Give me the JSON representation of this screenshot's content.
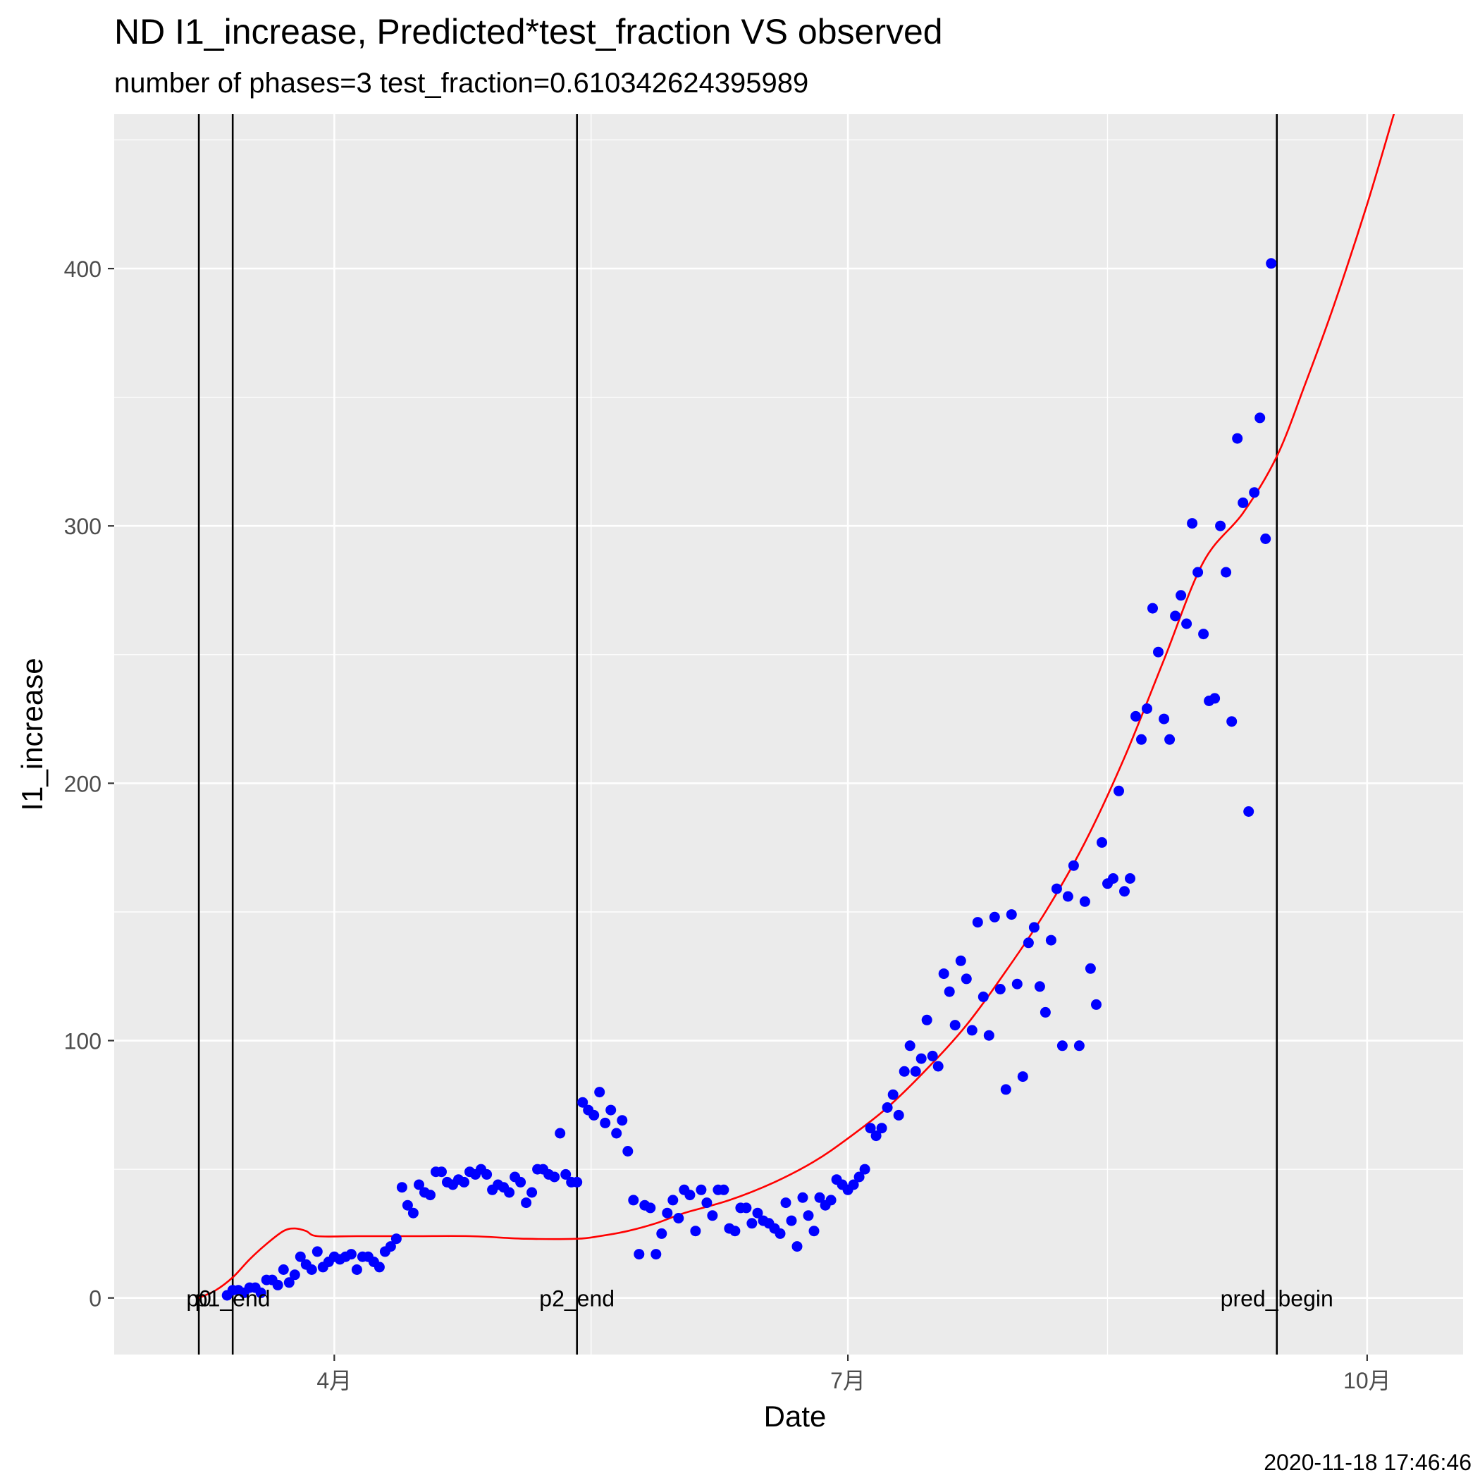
{
  "chart_data": {
    "type": "scatter",
    "title": "ND I1_increase, Predicted*test_fraction VS observed",
    "subtitle": "number of phases=3   test_fraction=0.610342624395989",
    "xlabel": "Date",
    "ylabel": "I1_increase",
    "timestamp": "2020-11-18 17:46:46",
    "xlim": [
      "2020-02-22",
      "2020-10-18"
    ],
    "ylim": [
      -22,
      460
    ],
    "x_ticks": [
      {
        "date": "2020-04-01",
        "label": "4月"
      },
      {
        "date": "2020-07-01",
        "label": "7月"
      },
      {
        "date": "2020-10-01",
        "label": "10月"
      }
    ],
    "y_ticks": [
      0,
      100,
      200,
      300,
      400
    ],
    "grid": true,
    "colors": {
      "panel": "#EBEBEB",
      "grid": "#FFFFFF",
      "observed": "#0000FF",
      "predicted": "#FF0000",
      "vline": "#000000"
    },
    "vlines": [
      {
        "date": "2020-03-08",
        "label": "p0"
      },
      {
        "date": "2020-03-14",
        "label": "p1_end"
      },
      {
        "date": "2020-05-14",
        "label": "p2_end"
      },
      {
        "date": "2020-09-15",
        "label": "pred_begin"
      }
    ],
    "observed": [
      [
        "2020-03-13",
        1
      ],
      [
        "2020-03-14",
        3
      ],
      [
        "2020-03-15",
        3
      ],
      [
        "2020-03-16",
        2
      ],
      [
        "2020-03-17",
        4
      ],
      [
        "2020-03-18",
        4
      ],
      [
        "2020-03-19",
        2
      ],
      [
        "2020-03-20",
        7
      ],
      [
        "2020-03-21",
        7
      ],
      [
        "2020-03-22",
        5
      ],
      [
        "2020-03-23",
        11
      ],
      [
        "2020-03-24",
        6
      ],
      [
        "2020-03-25",
        9
      ],
      [
        "2020-03-26",
        16
      ],
      [
        "2020-03-27",
        13
      ],
      [
        "2020-03-28",
        11
      ],
      [
        "2020-03-29",
        18
      ],
      [
        "2020-03-30",
        12
      ],
      [
        "2020-03-31",
        14
      ],
      [
        "2020-04-01",
        16
      ],
      [
        "2020-04-02",
        15
      ],
      [
        "2020-04-03",
        16
      ],
      [
        "2020-04-04",
        17
      ],
      [
        "2020-04-05",
        11
      ],
      [
        "2020-04-06",
        16
      ],
      [
        "2020-04-07",
        16
      ],
      [
        "2020-04-08",
        14
      ],
      [
        "2020-04-09",
        12
      ],
      [
        "2020-04-10",
        18
      ],
      [
        "2020-04-11",
        20
      ],
      [
        "2020-04-12",
        23
      ],
      [
        "2020-04-13",
        43
      ],
      [
        "2020-04-14",
        36
      ],
      [
        "2020-04-15",
        33
      ],
      [
        "2020-04-16",
        44
      ],
      [
        "2020-04-17",
        41
      ],
      [
        "2020-04-18",
        40
      ],
      [
        "2020-04-19",
        49
      ],
      [
        "2020-04-20",
        49
      ],
      [
        "2020-04-21",
        45
      ],
      [
        "2020-04-22",
        44
      ],
      [
        "2020-04-23",
        46
      ],
      [
        "2020-04-24",
        45
      ],
      [
        "2020-04-25",
        49
      ],
      [
        "2020-04-26",
        48
      ],
      [
        "2020-04-27",
        50
      ],
      [
        "2020-04-28",
        48
      ],
      [
        "2020-04-29",
        42
      ],
      [
        "2020-04-30",
        44
      ],
      [
        "2020-05-01",
        43
      ],
      [
        "2020-05-02",
        41
      ],
      [
        "2020-05-03",
        47
      ],
      [
        "2020-05-04",
        45
      ],
      [
        "2020-05-05",
        37
      ],
      [
        "2020-05-06",
        41
      ],
      [
        "2020-05-07",
        50
      ],
      [
        "2020-05-08",
        50
      ],
      [
        "2020-05-09",
        48
      ],
      [
        "2020-05-10",
        47
      ],
      [
        "2020-05-11",
        64
      ],
      [
        "2020-05-12",
        48
      ],
      [
        "2020-05-13",
        45
      ],
      [
        "2020-05-14",
        45
      ],
      [
        "2020-05-15",
        76
      ],
      [
        "2020-05-16",
        73
      ],
      [
        "2020-05-17",
        71
      ],
      [
        "2020-05-18",
        80
      ],
      [
        "2020-05-19",
        68
      ],
      [
        "2020-05-20",
        73
      ],
      [
        "2020-05-21",
        64
      ],
      [
        "2020-05-22",
        69
      ],
      [
        "2020-05-23",
        57
      ],
      [
        "2020-05-24",
        38
      ],
      [
        "2020-05-25",
        17
      ],
      [
        "2020-05-26",
        36
      ],
      [
        "2020-05-27",
        35
      ],
      [
        "2020-05-28",
        17
      ],
      [
        "2020-05-29",
        25
      ],
      [
        "2020-05-30",
        33
      ],
      [
        "2020-05-31",
        38
      ],
      [
        "2020-06-01",
        31
      ],
      [
        "2020-06-02",
        42
      ],
      [
        "2020-06-03",
        40
      ],
      [
        "2020-06-04",
        26
      ],
      [
        "2020-06-05",
        42
      ],
      [
        "2020-06-06",
        37
      ],
      [
        "2020-06-07",
        32
      ],
      [
        "2020-06-08",
        42
      ],
      [
        "2020-06-09",
        42
      ],
      [
        "2020-06-10",
        27
      ],
      [
        "2020-06-11",
        26
      ],
      [
        "2020-06-12",
        35
      ],
      [
        "2020-06-13",
        35
      ],
      [
        "2020-06-14",
        29
      ],
      [
        "2020-06-15",
        33
      ],
      [
        "2020-06-16",
        30
      ],
      [
        "2020-06-17",
        29
      ],
      [
        "2020-06-18",
        27
      ],
      [
        "2020-06-19",
        25
      ],
      [
        "2020-06-20",
        37
      ],
      [
        "2020-06-21",
        30
      ],
      [
        "2020-06-22",
        20
      ],
      [
        "2020-06-23",
        39
      ],
      [
        "2020-06-24",
        32
      ],
      [
        "2020-06-25",
        26
      ],
      [
        "2020-06-26",
        39
      ],
      [
        "2020-06-27",
        36
      ],
      [
        "2020-06-28",
        38
      ],
      [
        "2020-06-29",
        46
      ],
      [
        "2020-06-30",
        44
      ],
      [
        "2020-07-01",
        42
      ],
      [
        "2020-07-02",
        44
      ],
      [
        "2020-07-03",
        47
      ],
      [
        "2020-07-04",
        50
      ],
      [
        "2020-07-05",
        66
      ],
      [
        "2020-07-06",
        63
      ],
      [
        "2020-07-07",
        66
      ],
      [
        "2020-07-08",
        74
      ],
      [
        "2020-07-09",
        79
      ],
      [
        "2020-07-10",
        71
      ],
      [
        "2020-07-11",
        88
      ],
      [
        "2020-07-12",
        98
      ],
      [
        "2020-07-13",
        88
      ],
      [
        "2020-07-14",
        93
      ],
      [
        "2020-07-15",
        108
      ],
      [
        "2020-07-16",
        94
      ],
      [
        "2020-07-17",
        90
      ],
      [
        "2020-07-18",
        126
      ],
      [
        "2020-07-19",
        119
      ],
      [
        "2020-07-20",
        106
      ],
      [
        "2020-07-21",
        131
      ],
      [
        "2020-07-22",
        124
      ],
      [
        "2020-07-23",
        104
      ],
      [
        "2020-07-24",
        146
      ],
      [
        "2020-07-25",
        117
      ],
      [
        "2020-07-26",
        102
      ],
      [
        "2020-07-27",
        148
      ],
      [
        "2020-07-28",
        120
      ],
      [
        "2020-07-29",
        81
      ],
      [
        "2020-07-30",
        149
      ],
      [
        "2020-07-31",
        122
      ],
      [
        "2020-08-01",
        86
      ],
      [
        "2020-08-02",
        138
      ],
      [
        "2020-08-03",
        144
      ],
      [
        "2020-08-04",
        121
      ],
      [
        "2020-08-05",
        111
      ],
      [
        "2020-08-06",
        139
      ],
      [
        "2020-08-07",
        159
      ],
      [
        "2020-08-08",
        98
      ],
      [
        "2020-08-09",
        156
      ],
      [
        "2020-08-10",
        168
      ],
      [
        "2020-08-11",
        98
      ],
      [
        "2020-08-12",
        154
      ],
      [
        "2020-08-13",
        128
      ],
      [
        "2020-08-14",
        114
      ],
      [
        "2020-08-15",
        177
      ],
      [
        "2020-08-16",
        161
      ],
      [
        "2020-08-17",
        163
      ],
      [
        "2020-08-18",
        197
      ],
      [
        "2020-08-19",
        158
      ],
      [
        "2020-08-20",
        163
      ],
      [
        "2020-08-21",
        226
      ],
      [
        "2020-08-22",
        217
      ],
      [
        "2020-08-23",
        229
      ],
      [
        "2020-08-24",
        268
      ],
      [
        "2020-08-25",
        251
      ],
      [
        "2020-08-26",
        225
      ],
      [
        "2020-08-27",
        217
      ],
      [
        "2020-08-28",
        265
      ],
      [
        "2020-08-29",
        273
      ],
      [
        "2020-08-30",
        262
      ],
      [
        "2020-08-31",
        301
      ],
      [
        "2020-09-01",
        282
      ],
      [
        "2020-09-02",
        258
      ],
      [
        "2020-09-03",
        232
      ],
      [
        "2020-09-04",
        233
      ],
      [
        "2020-09-05",
        300
      ],
      [
        "2020-09-06",
        282
      ],
      [
        "2020-09-07",
        224
      ],
      [
        "2020-09-08",
        334
      ],
      [
        "2020-09-09",
        309
      ],
      [
        "2020-09-10",
        189
      ],
      [
        "2020-09-11",
        313
      ],
      [
        "2020-09-12",
        342
      ],
      [
        "2020-09-13",
        295
      ],
      [
        "2020-09-14",
        402
      ]
    ],
    "predicted": [
      [
        "2020-03-08",
        0
      ],
      [
        "2020-03-11",
        3
      ],
      [
        "2020-03-14",
        8
      ],
      [
        "2020-03-17",
        15
      ],
      [
        "2020-03-20",
        21
      ],
      [
        "2020-03-23",
        26
      ],
      [
        "2020-03-25",
        27
      ],
      [
        "2020-03-27",
        26
      ],
      [
        "2020-03-29",
        24
      ],
      [
        "2020-04-05",
        24
      ],
      [
        "2020-04-15",
        24
      ],
      [
        "2020-04-25",
        24
      ],
      [
        "2020-05-05",
        23
      ],
      [
        "2020-05-14",
        23
      ],
      [
        "2020-05-18",
        24
      ],
      [
        "2020-05-23",
        26
      ],
      [
        "2020-05-28",
        29
      ],
      [
        "2020-06-02",
        33
      ],
      [
        "2020-06-10",
        38
      ],
      [
        "2020-06-18",
        45
      ],
      [
        "2020-06-25",
        53
      ],
      [
        "2020-07-01",
        62
      ],
      [
        "2020-07-08",
        74
      ],
      [
        "2020-07-15",
        89
      ],
      [
        "2020-07-22",
        106
      ],
      [
        "2020-07-29",
        127
      ],
      [
        "2020-08-05",
        150
      ],
      [
        "2020-08-12",
        177
      ],
      [
        "2020-08-19",
        210
      ],
      [
        "2020-08-26",
        248
      ],
      [
        "2020-09-02",
        286
      ],
      [
        "2020-09-09",
        305
      ],
      [
        "2020-09-15",
        327
      ],
      [
        "2020-09-20",
        355
      ],
      [
        "2020-09-25",
        385
      ],
      [
        "2020-10-01",
        425
      ],
      [
        "2020-10-06",
        462
      ]
    ]
  }
}
